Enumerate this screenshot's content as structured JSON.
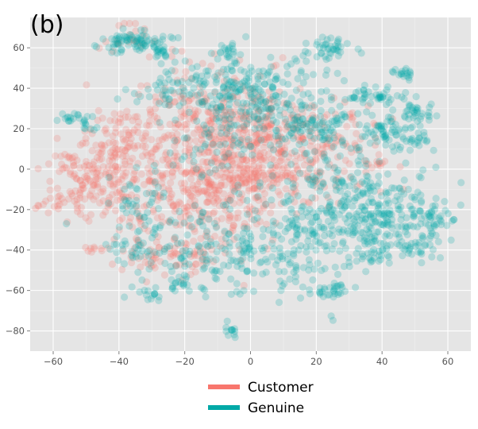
{
  "chart_data": {
    "type": "scatter",
    "panel_label": "(b)",
    "title": "",
    "xlabel": "",
    "ylabel": "",
    "xlim": [
      -67,
      67
    ],
    "ylim": [
      -90,
      75
    ],
    "x_ticks": [
      -60,
      -40,
      -20,
      0,
      20,
      40,
      60
    ],
    "x_tick_labels": [
      "−60",
      "−40",
      "−20",
      "0",
      "20",
      "40",
      "60"
    ],
    "y_ticks": [
      60,
      40,
      20,
      0,
      -20,
      -40,
      -60,
      -80
    ],
    "y_tick_labels": [
      "60",
      "40",
      "20",
      "0",
      "−20",
      "−40",
      "−60",
      "−80"
    ],
    "grid": true,
    "legend_position": "bottom",
    "point_opacity": 0.22,
    "series": [
      {
        "name": "Customer",
        "color": "#f8766d",
        "clusters": [
          {
            "center": [
              -20,
              -5
            ],
            "spread": [
              14,
              18
            ],
            "count": 420
          },
          {
            "center": [
              0,
              5
            ],
            "spread": [
              10,
              16
            ],
            "count": 260
          },
          {
            "center": [
              -48,
              -5
            ],
            "spread": [
              8,
              10
            ],
            "count": 150
          },
          {
            "center": [
              -27,
              -42
            ],
            "spread": [
              6,
              6
            ],
            "count": 60
          },
          {
            "center": [
              -10,
              30
            ],
            "spread": [
              12,
              12
            ],
            "count": 150
          },
          {
            "center": [
              15,
              10
            ],
            "spread": [
              12,
              12
            ],
            "count": 200
          },
          {
            "center": [
              -38,
              12
            ],
            "spread": [
              6,
              8
            ],
            "count": 60
          },
          {
            "center": [
              -37,
              65
            ],
            "spread": [
              4,
              4
            ],
            "count": 18
          },
          {
            "center": [
              -60,
              -18
            ],
            "spread": [
              2,
              1.5
            ],
            "count": 10
          },
          {
            "center": [
              -47,
              -40
            ],
            "spread": [
              1.5,
              1
            ],
            "count": 8
          },
          {
            "center": [
              38,
              3
            ],
            "spread": [
              1.5,
              1.5
            ],
            "count": 8
          }
        ],
        "points": [
          [
            -61,
            -6
          ],
          [
            -40,
            71
          ],
          [
            -35,
            72
          ],
          [
            -44,
            63
          ],
          [
            -11,
            57
          ],
          [
            -12,
            51
          ],
          [
            -26,
            40
          ],
          [
            -20,
            45
          ],
          [
            -42,
            -47
          ],
          [
            -44,
            20
          ],
          [
            39,
            3
          ],
          [
            40,
            3
          ]
        ]
      },
      {
        "name": "Genuine",
        "color": "#00a9a7",
        "clusters": [
          {
            "center": [
              -36,
              63
            ],
            "spread": [
              5,
              3
            ],
            "count": 80
          },
          {
            "center": [
              -26,
              57
            ],
            "spread": [
              2,
              1.5
            ],
            "count": 15
          },
          {
            "center": [
              -7,
              59
            ],
            "spread": [
              2,
              2
            ],
            "count": 18
          },
          {
            "center": [
              -5,
              40
            ],
            "spread": [
              10,
              7
            ],
            "count": 140
          },
          {
            "center": [
              8,
              35
            ],
            "spread": [
              10,
              12
            ],
            "count": 120
          },
          {
            "center": [
              25,
              60
            ],
            "spread": [
              3,
              2.5
            ],
            "count": 40
          },
          {
            "center": [
              46,
              47
            ],
            "spread": [
              2,
              1.5
            ],
            "count": 18
          },
          {
            "center": [
              51,
              29
            ],
            "spread": [
              2.5,
              2.5
            ],
            "count": 30
          },
          {
            "center": [
              36,
              36
            ],
            "spread": [
              5,
              3
            ],
            "count": 50
          },
          {
            "center": [
              43,
              18
            ],
            "spread": [
              5,
              5
            ],
            "count": 60
          },
          {
            "center": [
              50,
              14
            ],
            "spread": [
              2,
              1
            ],
            "count": 12
          },
          {
            "center": [
              -53,
              25
            ],
            "spread": [
              3,
              1.5
            ],
            "count": 20
          },
          {
            "center": [
              -36,
              -40
            ],
            "spread": [
              4,
              4
            ],
            "count": 25
          },
          {
            "center": [
              -33,
              -20
            ],
            "spread": [
              6,
              10
            ],
            "count": 60
          },
          {
            "center": [
              -20,
              -58
            ],
            "spread": [
              3,
              2
            ],
            "count": 15
          },
          {
            "center": [
              -31,
              -62
            ],
            "spread": [
              3,
              2
            ],
            "count": 15
          },
          {
            "center": [
              -6,
              -80
            ],
            "spread": [
              1,
              2
            ],
            "count": 12
          },
          {
            "center": [
              -10,
              -42
            ],
            "spread": [
              10,
              10
            ],
            "count": 120
          },
          {
            "center": [
              12,
              -35
            ],
            "spread": [
              10,
              12
            ],
            "count": 160
          },
          {
            "center": [
              24,
              -60
            ],
            "spread": [
              3,
              2
            ],
            "count": 30
          },
          {
            "center": [
              30,
              -10
            ],
            "spread": [
              10,
              12
            ],
            "count": 150
          },
          {
            "center": [
              40,
              -25
            ],
            "spread": [
              10,
              10
            ],
            "count": 180
          },
          {
            "center": [
              50,
              -37
            ],
            "spread": [
              3,
              4
            ],
            "count": 25
          },
          {
            "center": [
              38,
              -44
            ],
            "spread": [
              3,
              2
            ],
            "count": 20
          },
          {
            "center": [
              55,
              -25
            ],
            "spread": [
              3,
              4
            ],
            "count": 25
          },
          {
            "center": [
              -10,
              10
            ],
            "spread": [
              8,
              8
            ],
            "count": 60
          },
          {
            "center": [
              20,
              20
            ],
            "spread": [
              8,
              6
            ],
            "count": 80
          },
          {
            "center": [
              -25,
              40
            ],
            "spread": [
              6,
              5
            ],
            "count": 40
          },
          {
            "center": [
              -48,
              20
            ],
            "spread": [
              1.5,
              1
            ],
            "count": 6
          }
        ],
        "points": [
          [
            -56,
            -27
          ],
          [
            -22,
            65
          ],
          [
            20,
            22
          ],
          [
            48,
            -10
          ],
          [
            56,
            -20
          ],
          [
            59,
            -16
          ],
          [
            52,
            -42
          ]
        ]
      }
    ]
  }
}
